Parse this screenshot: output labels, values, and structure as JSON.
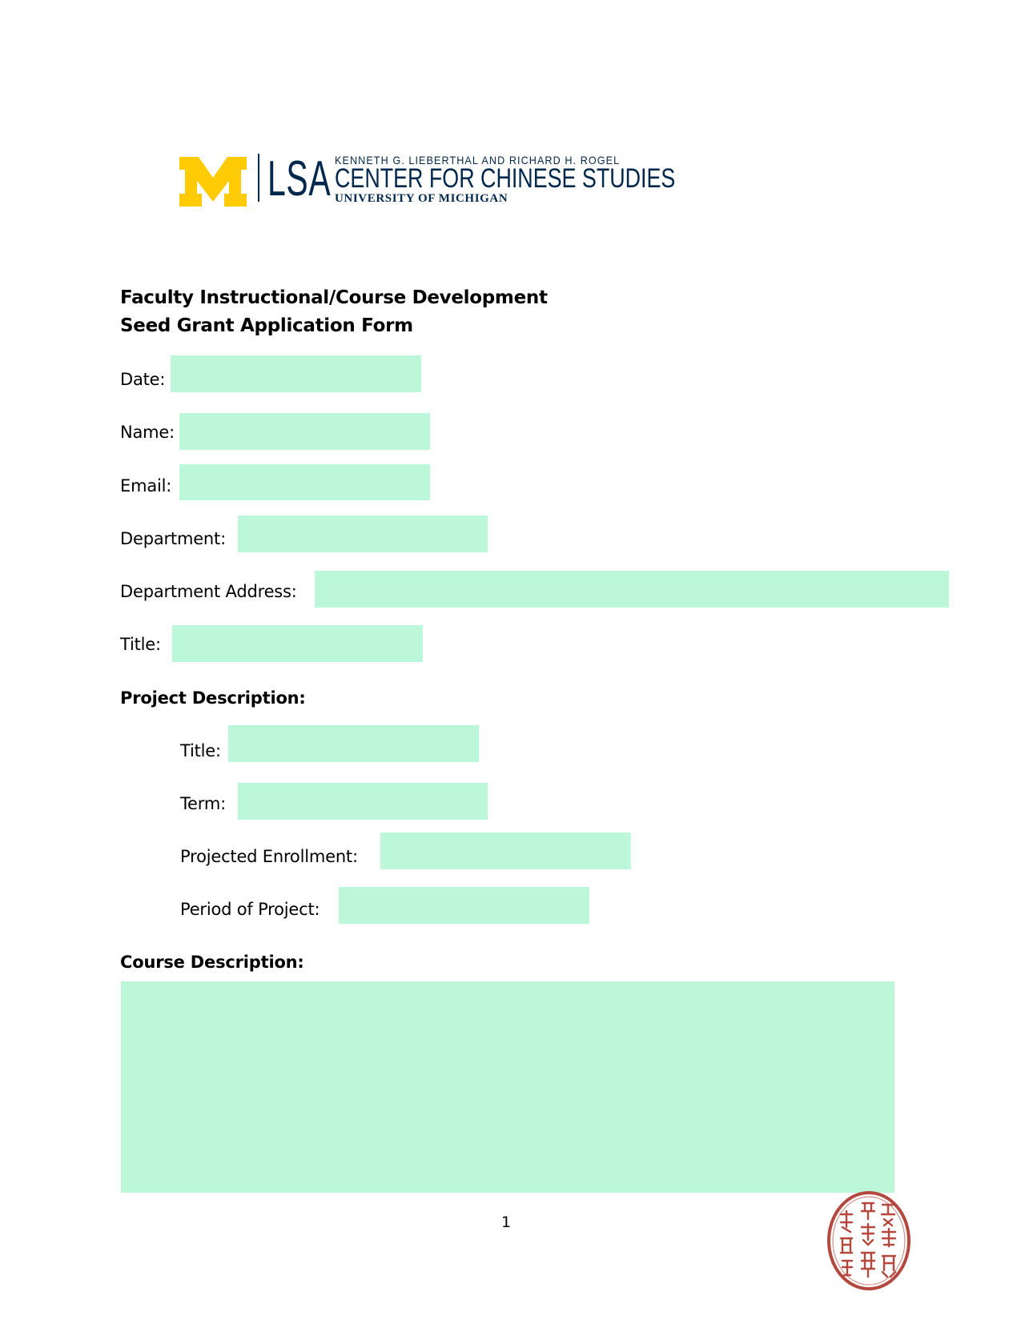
{
  "header": {
    "logo": {
      "block_m": "M",
      "lsa": "LSA",
      "line1": "KENNETH G. LIEBERTHAL AND RICHARD H. ROGEL",
      "line2": "CENTER FOR CHINESE STUDIES",
      "line3": "UNIVERSITY OF MICHIGAN",
      "colors": {
        "maize": "#FFCB05",
        "blue": "#00274C"
      }
    }
  },
  "form": {
    "title_line1": "Faculty Instructional/Course Development",
    "title_line2": "Seed Grant Application Form",
    "field_color": "#BDF7DA",
    "fields": {
      "date": {
        "label": "Date:",
        "value": ""
      },
      "name": {
        "label": "Name:",
        "value": ""
      },
      "email": {
        "label": "Email:",
        "value": ""
      },
      "department": {
        "label": "Department:",
        "value": ""
      },
      "department_address": {
        "label": "Department Address:",
        "value": ""
      },
      "title": {
        "label": "Title:",
        "value": ""
      }
    },
    "project_description": {
      "heading": "Project Description:",
      "fields": {
        "title": {
          "label": "Title:",
          "value": ""
        },
        "term": {
          "label": "Term:",
          "value": ""
        },
        "projected_enrollment": {
          "label": "Projected Enrollment:",
          "value": ""
        },
        "period_of_project": {
          "label": "Period of Project:",
          "value": ""
        }
      }
    },
    "course_description": {
      "heading": "Course Description:",
      "value": ""
    }
  },
  "footer": {
    "page_number": "1",
    "seal": {
      "icon": "chinese-seal-stamp",
      "text": "",
      "color": "#B5483E"
    }
  }
}
